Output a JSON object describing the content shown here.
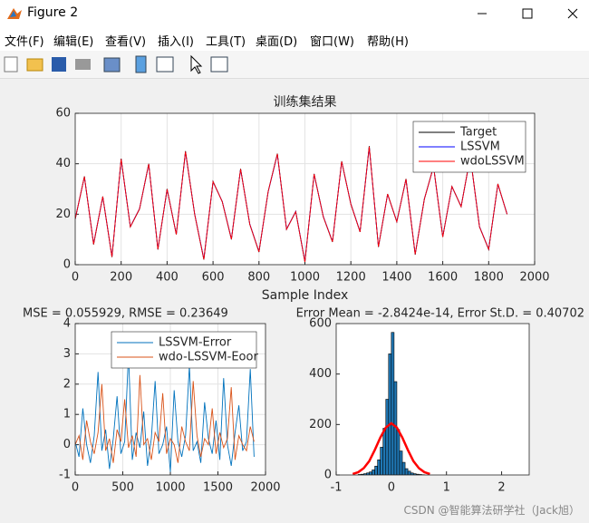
{
  "window": {
    "title": "Figure 2"
  },
  "menu": [
    "文件(F)",
    "编辑(E)",
    "查看(V)",
    "插入(I)",
    "工具(T)",
    "桌面(D)",
    "窗口(W)",
    "帮助(H)"
  ],
  "stats": [
    "MSE = 0.055929, RMSE = 0.23649",
    "Error Mean = -2.8424e-14, Error St.D. = 0.40702"
  ],
  "watermark": "CSDN @智能算法研学社（Jack旭）",
  "chart_data": [
    {
      "type": "line",
      "title": "训练集结果",
      "x_label": "Sample Index",
      "xlim": [
        0,
        2000
      ],
      "xticks": [
        0,
        200,
        400,
        600,
        800,
        1000,
        1200,
        1400,
        1600,
        1800,
        2000
      ],
      "ylim": [
        0,
        60
      ],
      "yticks": [
        0,
        20,
        40,
        60
      ],
      "grid": true,
      "legend": "northeast",
      "x": [
        0,
        40,
        80,
        120,
        160,
        200,
        240,
        280,
        320,
        360,
        400,
        440,
        480,
        520,
        560,
        600,
        640,
        680,
        720,
        760,
        800,
        840,
        880,
        920,
        960,
        1000,
        1040,
        1080,
        1120,
        1160,
        1200,
        1240,
        1280,
        1320,
        1360,
        1400,
        1440,
        1480,
        1520,
        1560,
        1600,
        1640,
        1680,
        1720,
        1760,
        1800,
        1840,
        1880
      ],
      "series": [
        {
          "name": "Target",
          "color": "#000000",
          "values": [
            18,
            35,
            8,
            27,
            3,
            42,
            15,
            22,
            40,
            6,
            30,
            12,
            45,
            20,
            2,
            33,
            25,
            10,
            38,
            16,
            5,
            29,
            44,
            14,
            21,
            1,
            36,
            19,
            9,
            41,
            24,
            13,
            47,
            7,
            28,
            17,
            34,
            4,
            26,
            39,
            11,
            31,
            23,
            43,
            15,
            6,
            32,
            20
          ]
        },
        {
          "name": "LSSVM",
          "color": "#0000ff",
          "values": [
            18.2,
            34.8,
            8.3,
            26.9,
            3.2,
            41.7,
            15.1,
            22.2,
            39.8,
            6.2,
            29.8,
            12.1,
            44.6,
            20.1,
            2.3,
            32.8,
            25.1,
            10.2,
            37.8,
            16.1,
            5.2,
            28.9,
            43.7,
            14.1,
            21.1,
            1.3,
            35.8,
            19.1,
            9.2,
            40.8,
            24.1,
            13.1,
            46.6,
            7.2,
            27.9,
            17.1,
            33.8,
            4.2,
            26.1,
            38.8,
            11.1,
            30.9,
            23.1,
            42.7,
            15.1,
            6.2,
            31.9,
            20.1
          ]
        },
        {
          "name": "wdoLSSVM",
          "color": "#ff0000",
          "values": [
            18.1,
            34.9,
            8.1,
            27,
            3.1,
            41.9,
            15,
            22.1,
            39.9,
            6.1,
            29.9,
            12,
            44.8,
            20,
            2.1,
            32.9,
            25,
            10.1,
            37.9,
            16,
            5.1,
            29,
            43.9,
            14,
            21,
            1.1,
            35.9,
            19,
            9.1,
            40.9,
            24,
            13,
            46.8,
            7.1,
            28,
            17,
            33.9,
            4.1,
            26,
            38.9,
            11,
            31,
            23,
            42.9,
            15,
            6.1,
            32,
            20
          ]
        }
      ]
    },
    {
      "type": "line",
      "xlim": [
        0,
        2000
      ],
      "xticks": [
        0,
        500,
        1000,
        1500,
        2000
      ],
      "ylim": [
        -1,
        4
      ],
      "yticks": [
        -1,
        0,
        1,
        2,
        3,
        4
      ],
      "grid": true,
      "legend": "northeast",
      "x": [
        0,
        40,
        80,
        120,
        160,
        200,
        240,
        280,
        320,
        360,
        400,
        440,
        480,
        520,
        560,
        600,
        640,
        680,
        720,
        760,
        800,
        840,
        880,
        920,
        960,
        1000,
        1040,
        1080,
        1120,
        1160,
        1200,
        1240,
        1280,
        1320,
        1360,
        1400,
        1440,
        1480,
        1520,
        1560,
        1600,
        1640,
        1680,
        1720,
        1760,
        1800,
        1840,
        1880
      ],
      "series": [
        {
          "name": "LSSVM-Error",
          "color": "#0072bd",
          "values": [
            0.1,
            -0.4,
            1.2,
            0.0,
            -0.6,
            0.3,
            2.4,
            -0.2,
            0.5,
            -0.8,
            0.2,
            1.6,
            -0.3,
            0.1,
            3.0,
            -0.5,
            0.4,
            -0.1,
            1.1,
            -0.7,
            0.2,
            2.1,
            -0.3,
            0.0,
            0.6,
            -0.9,
            1.8,
            0.1,
            -0.4,
            0.3,
            2.6,
            -0.2,
            0.1,
            -0.6,
            1.4,
            0.2,
            -0.3,
            0.8,
            -0.5,
            2.2,
            0.0,
            -0.7,
            0.4,
            1.3,
            -0.2,
            0.1,
            2.5,
            -0.4
          ]
        },
        {
          "name": "wdo-LSSVM-Eoor",
          "color": "#d95319",
          "values": [
            0.0,
            0.3,
            -0.5,
            0.8,
            0.1,
            -0.3,
            0.4,
            2.0,
            -0.2,
            0.2,
            -0.6,
            0.5,
            0.1,
            1.5,
            -0.1,
            0.3,
            -0.4,
            2.3,
            0.0,
            0.2,
            -0.5,
            0.4,
            0.1,
            1.7,
            -0.3,
            0.2,
            0.0,
            -0.6,
            0.6,
            0.1,
            -0.2,
            2.1,
            0.3,
            -0.4,
            0.2,
            0.0,
            1.2,
            -0.3,
            0.4,
            -0.1,
            0.2,
            1.9,
            -0.5,
            0.3,
            0.0,
            -0.2,
            0.6,
            0.1
          ]
        }
      ]
    },
    {
      "type": "histogram",
      "xlim": [
        -1,
        2.5
      ],
      "xticks": [
        -1,
        0,
        1,
        2
      ],
      "ylim": [
        0,
        600
      ],
      "yticks": [
        0,
        200,
        400,
        600
      ],
      "grid": false,
      "color": "#1f77b4",
      "bins": [
        -0.6,
        -0.55,
        -0.5,
        -0.45,
        -0.4,
        -0.35,
        -0.3,
        -0.25,
        -0.2,
        -0.15,
        -0.1,
        -0.05,
        0,
        0.05,
        0.1,
        0.15,
        0.2,
        0.25,
        0.3,
        0.35,
        0.4,
        0.45,
        0.5,
        0.55,
        0.6
      ],
      "counts": [
        2,
        3,
        5,
        8,
        12,
        20,
        35,
        60,
        110,
        185,
        300,
        480,
        565,
        370,
        180,
        95,
        50,
        25,
        15,
        8,
        5,
        3,
        2,
        1
      ],
      "fit": {
        "color": "#ff0000",
        "x": [
          -0.7,
          -0.6,
          -0.5,
          -0.4,
          -0.3,
          -0.2,
          -0.1,
          0,
          0.1,
          0.2,
          0.3,
          0.4,
          0.5,
          0.6,
          0.7
        ],
        "values": [
          4,
          11,
          27,
          55,
          99,
          148,
          188,
          205,
          188,
          148,
          99,
          55,
          27,
          11,
          4
        ]
      }
    }
  ]
}
